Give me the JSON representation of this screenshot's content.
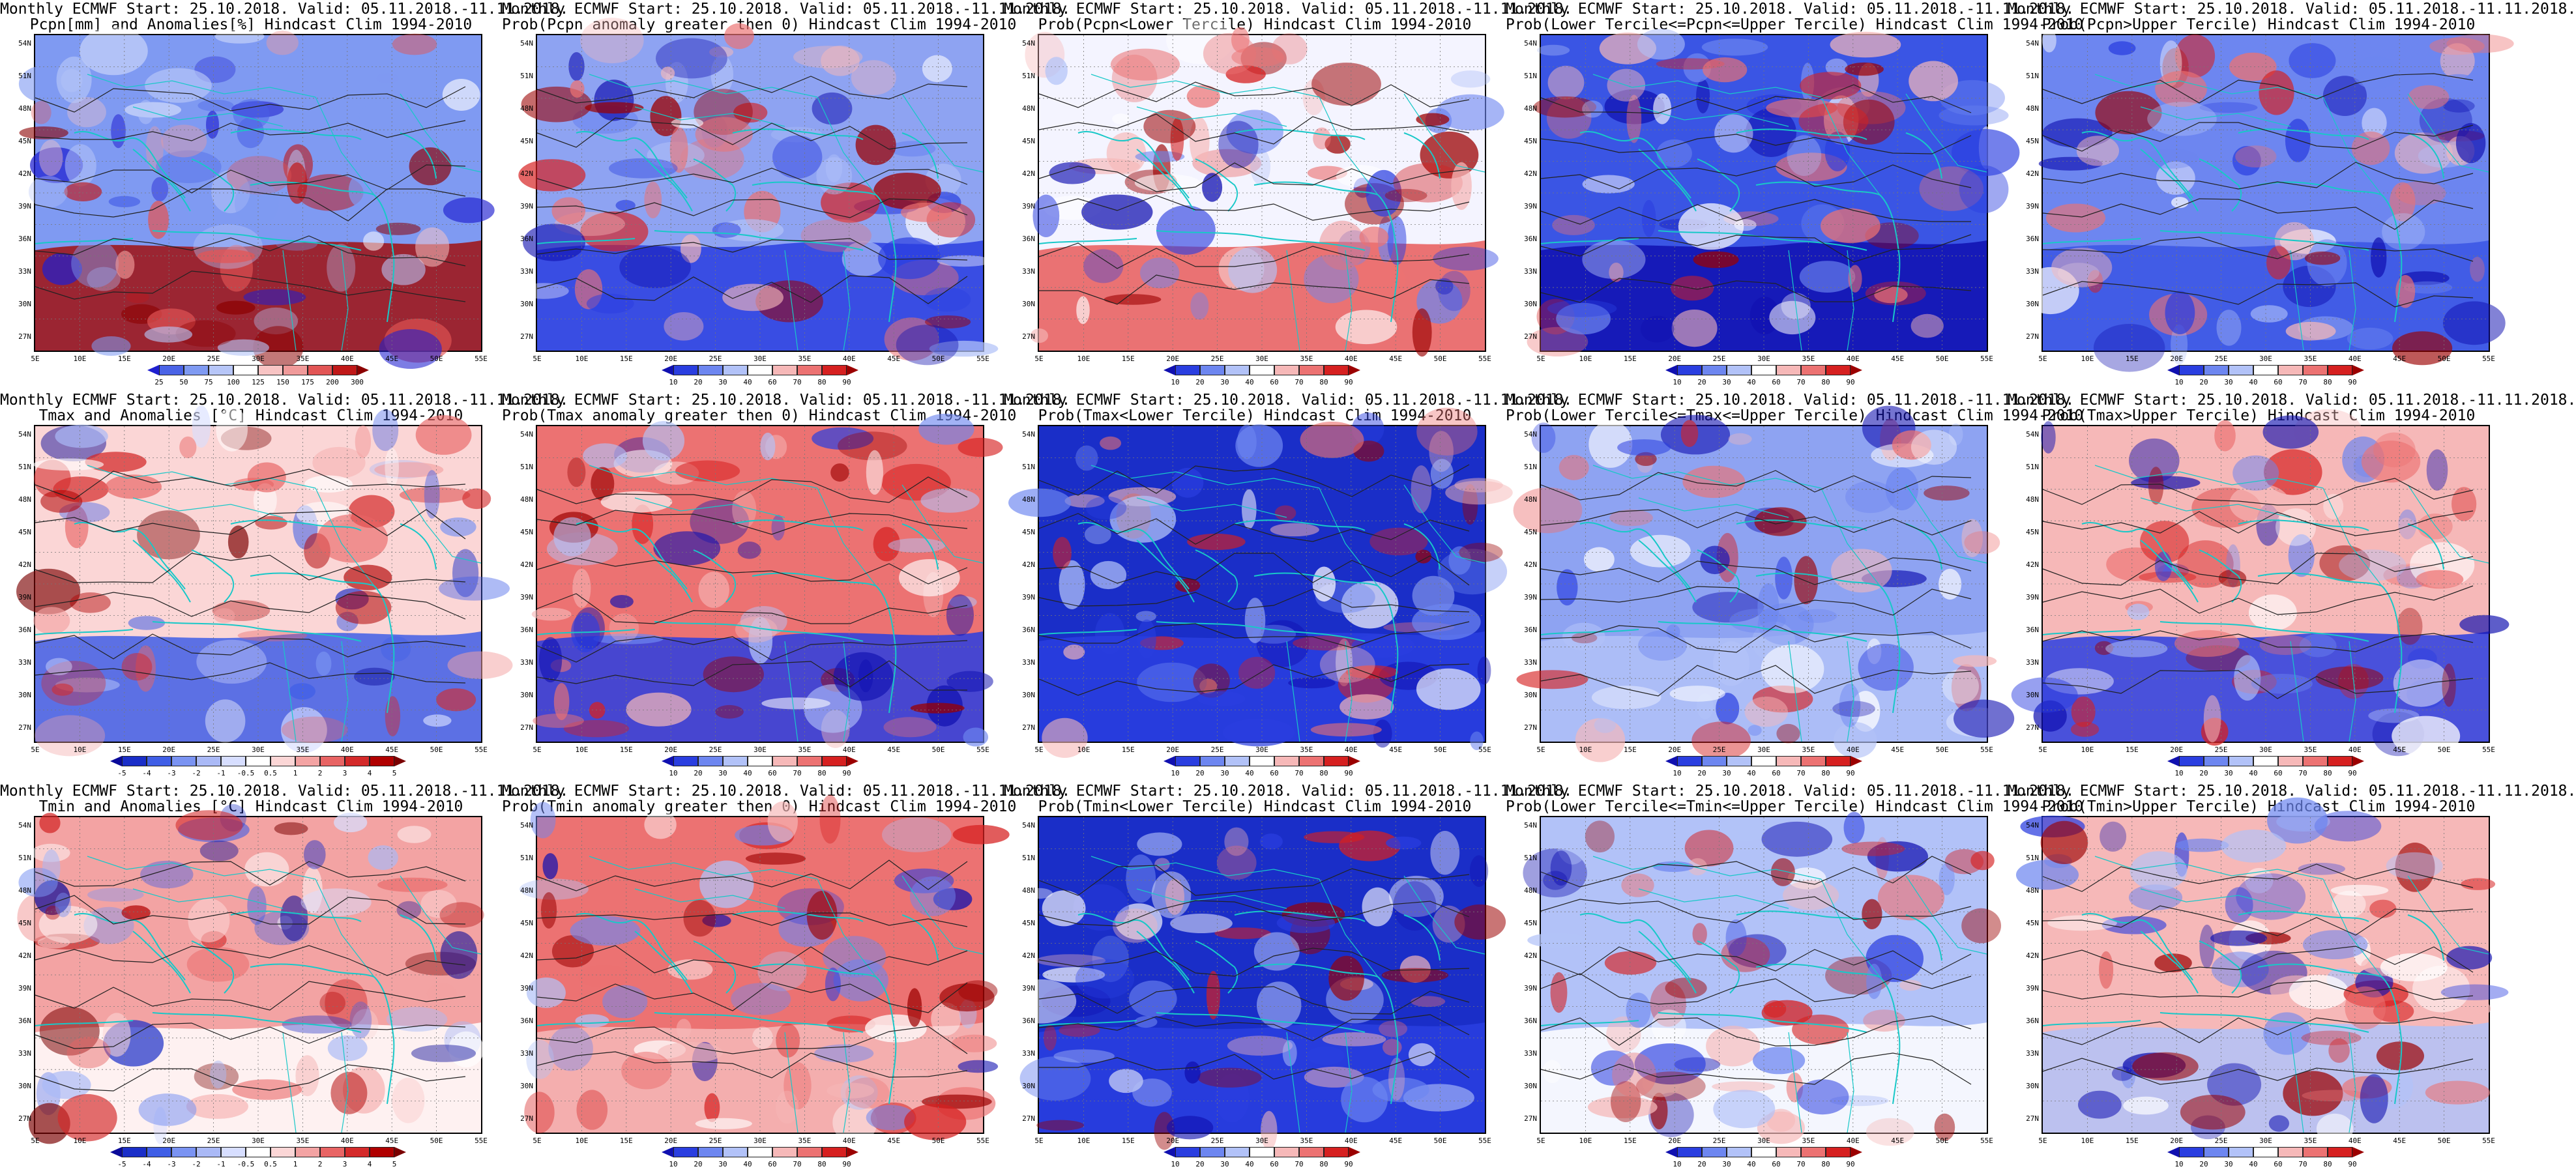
{
  "lat_labels": [
    "54N",
    "51N",
    "48N",
    "45N",
    "42N",
    "39N",
    "36N",
    "33N",
    "30N",
    "27N"
  ],
  "lon_labels": [
    "5E",
    "10E",
    "15E",
    "20E",
    "25E",
    "30E",
    "35E",
    "40E",
    "45E",
    "50E",
    "55E"
  ],
  "scales": {
    "pcpn_pct": {
      "ticks": [
        "25",
        "50",
        "75",
        "100",
        "125",
        "150",
        "175",
        "200",
        "300"
      ],
      "colors": [
        "#1f1fd0",
        "#4a63e6",
        "#7f9af2",
        "#b7c6f8",
        "#ffffff",
        "#f8c4c4",
        "#f09a9a",
        "#e25555",
        "#c01818",
        "#8b0000"
      ]
    },
    "prob": {
      "ticks": [
        "10",
        "20",
        "30",
        "40",
        "60",
        "70",
        "80",
        "90"
      ],
      "colors": [
        "#1010b0",
        "#2a3ee0",
        "#6d86f0",
        "#b2c2f8",
        "#ffffff",
        "#f6b8b8",
        "#ec7272",
        "#d62020",
        "#9b0000"
      ]
    },
    "temp_anom": {
      "ticks": [
        "-5",
        "-4",
        "-3",
        "-2",
        "-1",
        "-0.5",
        "0.5",
        "1",
        "2",
        "3",
        "4",
        "5"
      ],
      "colors": [
        "#0a0a9a",
        "#1a2ec8",
        "#3f5ee6",
        "#7a93f2",
        "#aab9f6",
        "#d7deff",
        "#ffffff",
        "#fbd6d6",
        "#f3a3a3",
        "#e86464",
        "#d42a2a",
        "#b00000",
        "#7a0000"
      ]
    }
  },
  "panels": [
    {
      "line1": "Monthly ECMWF Start: 25.10.2018. Valid: 05.11.2018.-11.11.2018.",
      "line2": "Pcpn[mm] and Anomalies[%] Hindcast Clim 1994-2010",
      "scale": "pcpn_pct",
      "base": "#7f9af2",
      "south": "#a01010"
    },
    {
      "line1": "Monthly ECMWF Start: 25.10.2018. Valid: 05.11.2018.-11.11.2018.",
      "line2": "Prob(Pcpn anomaly greater then 0) Hindcast Clim 1994-2010",
      "scale": "prob",
      "base": "#8ea3f2",
      "south": "#2a3ee0"
    },
    {
      "line1": "Monthly ECMWF Start: 25.10.2018. Valid: 05.11.2018.-11.11.2018.",
      "line2": "Prob(Pcpn<Lower Tercile) Hindcast Clim 1994-2010",
      "scale": "prob",
      "base": "#f4f4ff",
      "south": "#e85a5a"
    },
    {
      "line1": "Monthly ECMWF Start: 25.10.2018. Valid: 05.11.2018.-11.11.2018.",
      "line2": "Prob(Lower Tercile<=Pcpn<=Upper Tercile) Hindcast Clim 1994-2010",
      "scale": "prob",
      "base": "#3a55e4",
      "south": "#1010b0"
    },
    {
      "line1": "Monthly ECMWF Start: 25.10.2018. Valid: 05.11.2018.-11.11.2018.",
      "line2": "Prob(Pcpn>Upper Tercile) Hindcast Clim 1994-2010",
      "scale": "prob",
      "base": "#6d86f0",
      "south": "#3a55e4"
    },
    {
      "line1": "Monthly ECMWF Start: 25.10.2018. Valid: 05.11.2018.-11.11.2018.",
      "line2": "Tmax and Anomalies [°C] Hindcast Clim 1994-2010",
      "scale": "temp_anom",
      "base": "#fbd6d6",
      "south": "#3f5ee6"
    },
    {
      "line1": "Monthly ECMWF Start: 25.10.2018. Valid: 05.11.2018.-11.11.2018.",
      "line2": "Prob(Tmax anomaly greater then 0) Hindcast Clim 1994-2010",
      "scale": "prob",
      "base": "#ec7272",
      "south": "#2a3ee0"
    },
    {
      "line1": "Monthly ECMWF Start: 25.10.2018. Valid: 05.11.2018.-11.11.2018.",
      "line2": "Prob(Tmax<Lower Tercile) Hindcast Clim 1994-2010",
      "scale": "prob",
      "base": "#1a2ec8",
      "south": "#2a3ee0"
    },
    {
      "line1": "Monthly ECMWF Start: 25.10.2018. Valid: 05.11.2018.-11.11.2018.",
      "line2": "Prob(Lower Tercile<=Tmax<=Upper Tercile) Hindcast Clim 1994-2010",
      "scale": "prob",
      "base": "#8ea3f2",
      "south": "#b2c2f8"
    },
    {
      "line1": "Monthly ECMWF Start: 25.10.2018. Valid: 05.11.2018.-11.11.2018.",
      "line2": "Prob(Tmax>Upper Tercile) Hindcast Clim 1994-2010",
      "scale": "prob",
      "base": "#f6b8b8",
      "south": "#2a3ee0"
    },
    {
      "line1": "Monthly ECMWF Start: 25.10.2018. Valid: 05.11.2018.-11.11.2018.",
      "line2": "Tmin and Anomalies [°C] Hindcast Clim 1994-2010",
      "scale": "temp_anom",
      "base": "#f3a3a3",
      "south": "#ffffff"
    },
    {
      "line1": "Monthly ECMWF Start: 25.10.2018. Valid: 05.11.2018.-11.11.2018.",
      "line2": "Prob(Tmin anomaly greater then 0) Hindcast Clim 1994-2010",
      "scale": "prob",
      "base": "#ec7272",
      "south": "#f6b8b8"
    },
    {
      "line1": "Monthly ECMWF Start: 25.10.2018. Valid: 05.11.2018.-11.11.2018.",
      "line2": "Prob(Tmin<Lower Tercile) Hindcast Clim 1994-2010",
      "scale": "prob",
      "base": "#1a2ec8",
      "south": "#2a3ee0"
    },
    {
      "line1": "Monthly ECMWF Start: 25.10.2018. Valid: 05.11.2018.-11.11.2018.",
      "line2": "Prob(Lower Tercile<=Tmin<=Upper Tercile) Hindcast Clim 1994-2010",
      "scale": "prob",
      "base": "#b2c2f8",
      "south": "#ffffff"
    },
    {
      "line1": "Monthly ECMWF Start: 25.10.2018. Valid: 05.11.2018.-11.11.2018.",
      "line2": "Prob(Tmin>Upper Tercile) Hindcast Clim 1994-2010",
      "scale": "prob",
      "base": "#f6b8b8",
      "south": "#b2c2f8"
    }
  ]
}
